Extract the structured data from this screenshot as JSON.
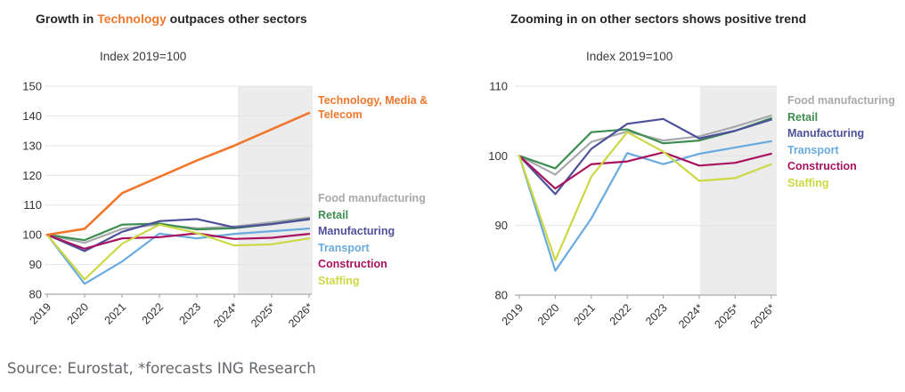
{
  "page": {
    "background": "#ffffff",
    "source_note": "Source: Eurostat, *forecasts ING Research",
    "text_color": "#262626",
    "grid_color": "#e4e4e4",
    "axis_color": "#ababab",
    "band_color": "#ececec"
  },
  "chart_data": [
    {
      "type": "line",
      "title_parts": [
        {
          "text": "Growth in ",
          "color": "#262626"
        },
        {
          "text": "Technology",
          "color": "#F0772B"
        },
        {
          "text": " outpaces other sectors",
          "color": "#262626"
        }
      ],
      "subtitle": "Index 2019=100",
      "categories": [
        "2019",
        "2020",
        "2021",
        "2022",
        "2023",
        "2024*",
        "2025*",
        "2026*"
      ],
      "ylim": [
        80,
        150
      ],
      "yticks": [
        150,
        140,
        130,
        120,
        110,
        100,
        90,
        80
      ],
      "grid": true,
      "legend_position": "right",
      "forecast_band": {
        "from_category": "2024*",
        "note": "forecast period"
      },
      "series": [
        {
          "name": "Technology, Media & Telecom",
          "color": "#F0772B",
          "width": 2.6,
          "z": 1,
          "own_label": true,
          "values": [
            100,
            102,
            114,
            119.5,
            125,
            130,
            135.5,
            141
          ]
        },
        {
          "name": "Food manufacturing",
          "color": "#A6AAAD",
          "values": [
            100,
            97.3,
            102,
            103.5,
            102.2,
            102.8,
            104.2,
            105.8
          ]
        },
        {
          "name": "Retail",
          "color": "#3E8D51",
          "values": [
            100,
            98.2,
            103.4,
            103.8,
            101.8,
            102.2,
            103.6,
            105.4
          ]
        },
        {
          "name": "Manufacturing",
          "color": "#4D5199",
          "values": [
            100,
            94.5,
            101,
            104.6,
            105.3,
            102.5,
            103.6,
            105.2
          ]
        },
        {
          "name": "Transport",
          "color": "#69AADF",
          "values": [
            100,
            83.5,
            91,
            100.4,
            98.8,
            100.3,
            101.2,
            102.1
          ]
        },
        {
          "name": "Construction",
          "color": "#A9125F",
          "values": [
            100,
            95.3,
            98.8,
            99.2,
            100.5,
            98.6,
            99,
            100.3
          ]
        },
        {
          "name": "Staffing",
          "color": "#CCD844",
          "values": [
            100,
            85,
            97,
            103.4,
            100.6,
            96.4,
            96.8,
            98.8
          ]
        }
      ]
    },
    {
      "type": "line",
      "title_parts": [
        {
          "text": "Zooming in on other sectors shows positive trend",
          "color": "#262626"
        }
      ],
      "subtitle": "Index 2019=100",
      "categories": [
        "2019",
        "2020",
        "2021",
        "2022",
        "2023",
        "2024*",
        "2025*",
        "2026*"
      ],
      "ylim": [
        80,
        110
      ],
      "yticks": [
        110,
        100,
        90,
        80
      ],
      "grid": true,
      "legend_position": "right",
      "forecast_band": {
        "from_category": "2024*",
        "note": "forecast period"
      },
      "series": [
        {
          "name": "Food manufacturing",
          "color": "#A6AAAD",
          "values": [
            100,
            97.3,
            102,
            103.5,
            102.2,
            102.8,
            104.2,
            105.8
          ]
        },
        {
          "name": "Retail",
          "color": "#3E8D51",
          "values": [
            100,
            98.2,
            103.4,
            103.8,
            101.8,
            102.2,
            103.6,
            105.4
          ]
        },
        {
          "name": "Manufacturing",
          "color": "#4D5199",
          "values": [
            100,
            94.5,
            101,
            104.6,
            105.3,
            102.5,
            103.6,
            105.2
          ]
        },
        {
          "name": "Transport",
          "color": "#69AADF",
          "values": [
            100,
            83.5,
            91,
            100.4,
            98.8,
            100.3,
            101.2,
            102.1
          ]
        },
        {
          "name": "Construction",
          "color": "#A9125F",
          "values": [
            100,
            95.3,
            98.8,
            99.2,
            100.5,
            98.6,
            99,
            100.3
          ]
        },
        {
          "name": "Staffing",
          "color": "#CCD844",
          "values": [
            100,
            85,
            97,
            103.4,
            100.6,
            96.4,
            96.8,
            98.8
          ]
        }
      ]
    }
  ]
}
